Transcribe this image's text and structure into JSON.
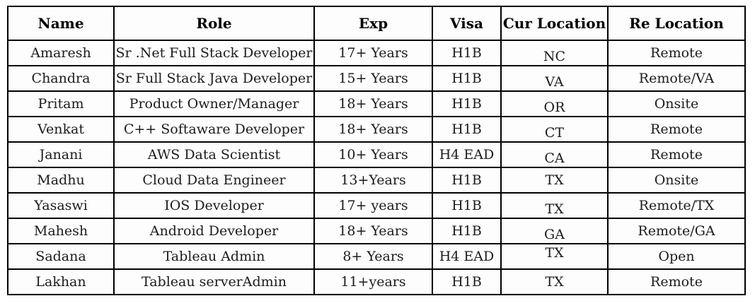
{
  "page": {
    "background": "#ffffff"
  },
  "colors": {
    "border": "#000000",
    "header_text": "#000000",
    "cell_text": "#1c1c1c",
    "cell_background": "#fdfdfd"
  },
  "table": {
    "columns": [
      {
        "label": "Name"
      },
      {
        "label": "Role"
      },
      {
        "label": "Exp"
      },
      {
        "label": "Visa"
      },
      {
        "label": "Cur Location"
      },
      {
        "label": "Re Location"
      }
    ],
    "rows": [
      [
        "Amaresh",
        "Sr .Net Full Stack Developer",
        "17+ Years",
        "H1B",
        "NC",
        "Remote"
      ],
      [
        "Chandra",
        "Sr Full Stack Java Developer",
        "15+ Years",
        "H1B",
        "VA",
        "Remote/VA"
      ],
      [
        "Pritam",
        "Product Owner/Manager",
        "18+ Years",
        "H1B",
        "OR",
        "Onsite"
      ],
      [
        "Venkat",
        "C++ Softaware Developer",
        "18+ Years",
        "H1B",
        "CT",
        "Remote"
      ],
      [
        "Janani",
        "AWS Data Scientist",
        "10+ Years",
        "H4 EAD",
        "CA",
        "Remote"
      ],
      [
        "Madhu",
        "Cloud Data Engineer",
        "13+Years",
        "H1B",
        "TX",
        "Onsite"
      ],
      [
        "Yasaswi",
        "IOS Developer",
        "17+ years",
        "H1B",
        "TX",
        "Remote/TX"
      ],
      [
        "Mahesh",
        "Android Developer",
        "18+ Years",
        "H1B",
        "GA",
        "Remote/GA"
      ],
      [
        "Sadana",
        "Tableau Admin",
        "8+ Years",
        "H4 EAD",
        "TX",
        "Open"
      ],
      [
        "Lakhan",
        "Tableau serverAdmin",
        "11+years",
        "H1B",
        "TX",
        "Remote"
      ]
    ]
  }
}
